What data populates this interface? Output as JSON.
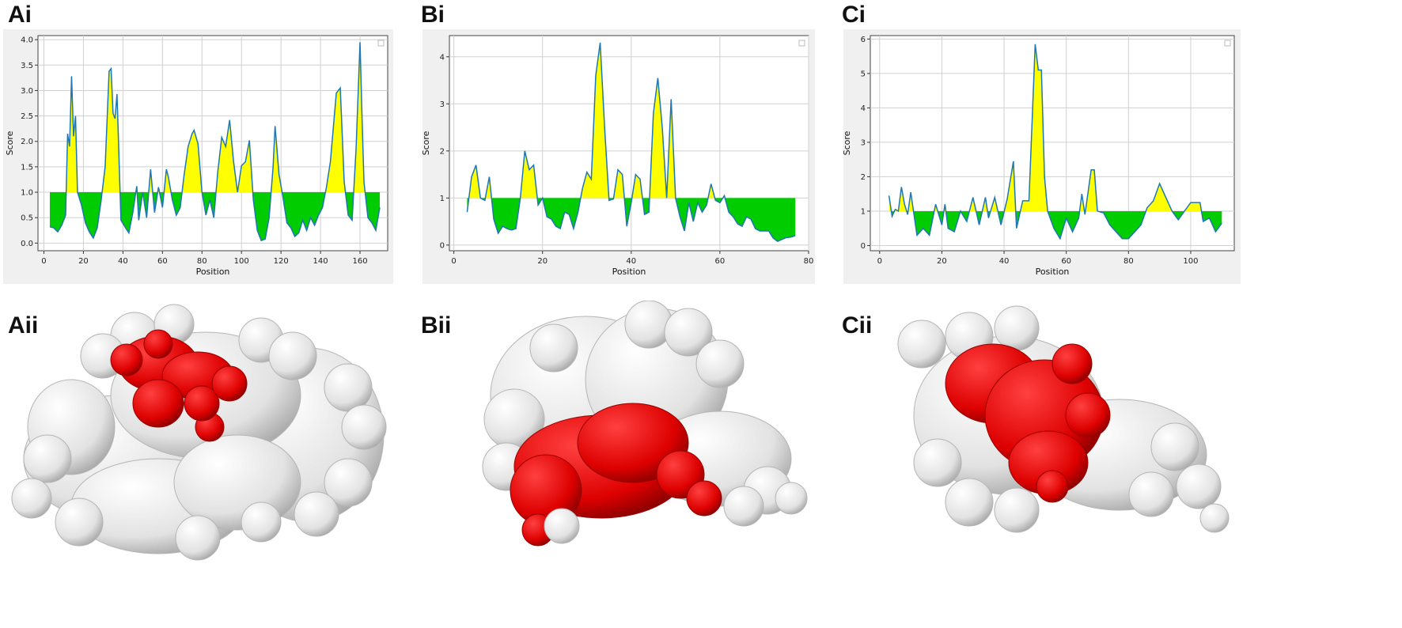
{
  "panels": {
    "ai": "Ai",
    "bi": "Bi",
    "ci": "Ci",
    "aii": "Aii",
    "bii": "Bii",
    "cii": "Cii"
  },
  "colors": {
    "above": "#ffff00",
    "below": "#00cc00",
    "line": "#1f77b4",
    "epitope": "#dd0000",
    "surface": "#e6e6e6"
  },
  "chart_data": [
    {
      "type": "area",
      "xlabel": "Position",
      "ylabel": "Score",
      "threshold": 1.0,
      "xlim": [
        -3,
        174
      ],
      "ylim": [
        -0.15,
        4.08
      ],
      "xticks": [
        "0",
        "20",
        "40",
        "60",
        "80",
        "100",
        "120",
        "140",
        "160"
      ],
      "yticks": [
        "0.0",
        "0.5",
        "1.0",
        "1.5",
        "2.0",
        "2.5",
        "3.0",
        "3.5",
        "4.0"
      ],
      "grid": true,
      "x": [
        3,
        5,
        7,
        9,
        11,
        12,
        13,
        14,
        15,
        16,
        17,
        19,
        21,
        23,
        25,
        27,
        29,
        31,
        33,
        34,
        35,
        36,
        37,
        39,
        41,
        43,
        45,
        47,
        48,
        50,
        52,
        54,
        56,
        58,
        60,
        62,
        63,
        65,
        67,
        69,
        71,
        73,
        75,
        76,
        78,
        80,
        82,
        84,
        86,
        88,
        90,
        92,
        94,
        96,
        98,
        100,
        102,
        104,
        106,
        108,
        110,
        112,
        114,
        116,
        117,
        119,
        121,
        123,
        125,
        127,
        129,
        131,
        133,
        135,
        137,
        139,
        141,
        143,
        145,
        147,
        148,
        150,
        152,
        154,
        156,
        158,
        160,
        161,
        162,
        164,
        166,
        168,
        170
      ],
      "series": [
        {
          "values": [
            0.32,
            0.3,
            0.22,
            0.35,
            0.55,
            2.15,
            1.9,
            3.28,
            2.1,
            2.5,
            1.0,
            0.75,
            0.4,
            0.22,
            0.1,
            0.3,
            0.85,
            1.5,
            3.38,
            3.43,
            2.55,
            2.45,
            2.93,
            0.45,
            0.32,
            0.2,
            0.6,
            1.12,
            0.45,
            1.0,
            0.5,
            1.45,
            0.6,
            1.1,
            0.7,
            1.45,
            1.3,
            0.85,
            0.55,
            0.7,
            1.35,
            1.9,
            2.15,
            2.22,
            1.95,
            1.0,
            0.55,
            0.85,
            0.5,
            1.4,
            2.08,
            1.9,
            2.42,
            1.6,
            1.0,
            1.52,
            1.6,
            2.02,
            0.85,
            0.25,
            0.05,
            0.08,
            0.5,
            1.5,
            2.3,
            1.35,
            0.9,
            0.4,
            0.3,
            0.13,
            0.2,
            0.45,
            0.25,
            0.5,
            0.35,
            0.55,
            0.7,
            1.1,
            1.6,
            2.5,
            2.95,
            3.05,
            1.2,
            0.55,
            0.45,
            1.85,
            3.95,
            2.5,
            1.2,
            0.5,
            0.4,
            0.25,
            0.7
          ]
        }
      ]
    },
    {
      "type": "area",
      "xlabel": "Position",
      "ylabel": "Score",
      "threshold": 1.0,
      "xlim": [
        -1,
        80
      ],
      "ylim": [
        -0.12,
        4.45
      ],
      "xticks": [
        "0",
        "20",
        "40",
        "60",
        "80"
      ],
      "yticks": [
        "0",
        "1",
        "2",
        "3",
        "4"
      ],
      "grid": true,
      "x": [
        3,
        4,
        5,
        6,
        7,
        8,
        9,
        10,
        11,
        12,
        13,
        14,
        15,
        16,
        17,
        18,
        19,
        20,
        21,
        22,
        23,
        24,
        25,
        26,
        27,
        28,
        29,
        30,
        31,
        32,
        33,
        34,
        35,
        36,
        37,
        38,
        39,
        40,
        41,
        42,
        43,
        44,
        45,
        46,
        47,
        48,
        49,
        50,
        51,
        52,
        53,
        54,
        55,
        56,
        57,
        58,
        59,
        60,
        61,
        62,
        63,
        64,
        65,
        66,
        67,
        68,
        69,
        70,
        71,
        72,
        73,
        74,
        75,
        76,
        77
      ],
      "series": [
        {
          "values": [
            0.7,
            1.45,
            1.7,
            1.0,
            0.95,
            1.45,
            0.55,
            0.25,
            0.4,
            0.35,
            0.32,
            0.35,
            1.0,
            2.0,
            1.6,
            1.7,
            0.85,
            1.0,
            0.6,
            0.55,
            0.4,
            0.35,
            0.7,
            0.65,
            0.35,
            0.7,
            1.2,
            1.55,
            1.4,
            3.6,
            4.3,
            2.5,
            0.95,
            0.98,
            1.6,
            1.5,
            0.4,
            0.9,
            1.5,
            1.4,
            0.65,
            0.7,
            2.8,
            3.55,
            2.5,
            1.0,
            3.1,
            1.0,
            0.6,
            0.3,
            0.9,
            0.5,
            0.9,
            0.7,
            0.85,
            1.3,
            0.95,
            0.9,
            1.05,
            0.7,
            0.6,
            0.45,
            0.4,
            0.6,
            0.55,
            0.35,
            0.3,
            0.3,
            0.3,
            0.15,
            0.08,
            0.12,
            0.16,
            0.17,
            0.2
          ]
        }
      ]
    },
    {
      "type": "area",
      "xlabel": "Position",
      "ylabel": "Score",
      "threshold": 1.0,
      "xlim": [
        -3,
        114
      ],
      "ylim": [
        -0.15,
        6.1
      ],
      "xticks": [
        "0",
        "20",
        "40",
        "60",
        "80",
        "100"
      ],
      "yticks": [
        "0",
        "1",
        "2",
        "3",
        "4",
        "5",
        "6"
      ],
      "grid": true,
      "x": [
        3,
        4,
        5,
        6,
        7,
        8,
        9,
        10,
        12,
        14,
        16,
        18,
        19,
        20,
        21,
        22,
        24,
        26,
        28,
        30,
        32,
        34,
        35,
        37,
        39,
        41,
        43,
        44,
        46,
        48,
        50,
        51,
        52,
        53,
        54,
        56,
        58,
        60,
        62,
        64,
        65,
        66,
        68,
        69,
        70,
        72,
        74,
        76,
        78,
        80,
        82,
        84,
        86,
        88,
        90,
        92,
        93,
        94,
        96,
        98,
        100,
        102,
        103,
        104,
        106,
        108,
        110
      ],
      "series": [
        {
          "values": [
            1.45,
            0.85,
            1.05,
            1.0,
            1.7,
            1.2,
            0.9,
            1.55,
            0.3,
            0.5,
            0.3,
            1.2,
            0.9,
            0.6,
            1.2,
            0.5,
            0.4,
            1.0,
            0.7,
            1.4,
            0.6,
            1.4,
            0.8,
            1.4,
            0.6,
            1.35,
            2.45,
            0.5,
            1.3,
            1.3,
            5.85,
            5.1,
            5.1,
            2.0,
            1.0,
            0.5,
            0.2,
            0.8,
            0.4,
            0.8,
            1.5,
            0.9,
            2.2,
            2.2,
            1.0,
            0.95,
            0.6,
            0.4,
            0.2,
            0.2,
            0.4,
            0.6,
            1.1,
            1.3,
            1.8,
            1.4,
            1.2,
            1.0,
            0.75,
            1.0,
            1.25,
            1.25,
            1.25,
            0.7,
            0.8,
            0.4,
            0.65
          ]
        }
      ]
    }
  ]
}
